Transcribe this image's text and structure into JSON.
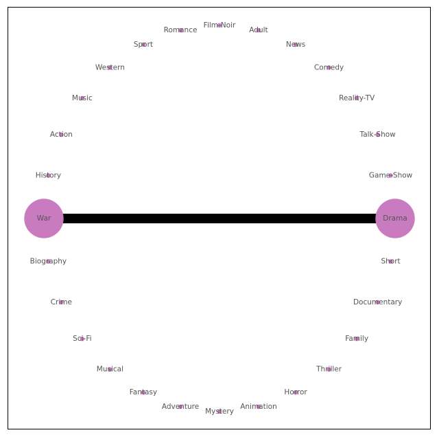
{
  "chart_data": {
    "type": "network",
    "layout": "circular",
    "node_color": "#c97bbf",
    "edge_color": "#000000",
    "nodes": [
      {
        "name": "Drama",
        "weight": 1
      },
      {
        "name": "Game-Show",
        "weight": 0
      },
      {
        "name": "Talk-Show",
        "weight": 0
      },
      {
        "name": "Reality-TV",
        "weight": 0
      },
      {
        "name": "Comedy",
        "weight": 0
      },
      {
        "name": "News",
        "weight": 0
      },
      {
        "name": "Adult",
        "weight": 0
      },
      {
        "name": "Film-Noir",
        "weight": 0
      },
      {
        "name": "Romance",
        "weight": 0
      },
      {
        "name": "Sport",
        "weight": 0
      },
      {
        "name": "Western",
        "weight": 0
      },
      {
        "name": "Music",
        "weight": 0
      },
      {
        "name": "Action",
        "weight": 0
      },
      {
        "name": "History",
        "weight": 0
      },
      {
        "name": "War",
        "weight": 1
      },
      {
        "name": "Biography",
        "weight": 0
      },
      {
        "name": "Crime",
        "weight": 0
      },
      {
        "name": "Sci-Fi",
        "weight": 0
      },
      {
        "name": "Musical",
        "weight": 0
      },
      {
        "name": "Fantasy",
        "weight": 0
      },
      {
        "name": "Adventure",
        "weight": 0
      },
      {
        "name": "Mystery",
        "weight": 0
      },
      {
        "name": "Animation",
        "weight": 0
      },
      {
        "name": "Horror",
        "weight": 0
      },
      {
        "name": "Thriller",
        "weight": 0
      },
      {
        "name": "Family",
        "weight": 0
      },
      {
        "name": "Documentary",
        "weight": 0
      },
      {
        "name": "Short",
        "weight": 0
      }
    ],
    "edges": [
      {
        "source": "War",
        "target": "Drama",
        "weight": 1
      }
    ]
  }
}
